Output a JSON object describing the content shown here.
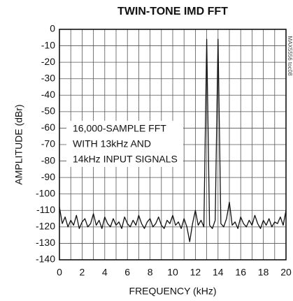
{
  "chart_data": {
    "type": "line",
    "title": "TWIN-TONE IMD FFT",
    "x_label": "FREQUENCY (kHz)",
    "y_label": "AMPLITUDE (dBr)",
    "annotation": [
      "16,000-SAMPLE FFT",
      "WITH 13kHz AND",
      "14kHz INPUT SIGNALS"
    ],
    "side_label": "MAX5556 toc08",
    "xlim": [
      0,
      20
    ],
    "ylim": [
      -140,
      0
    ],
    "xticks": [
      0,
      2,
      4,
      6,
      8,
      10,
      12,
      14,
      16,
      18,
      20
    ],
    "xgrid": [
      1,
      3,
      5,
      7,
      9,
      11,
      13,
      15,
      17,
      19
    ],
    "yticks": [
      0,
      -10,
      -20,
      -30,
      -40,
      -50,
      -60,
      -70,
      -80,
      -90,
      -100,
      -110,
      -120,
      -130,
      -140
    ],
    "grid": true,
    "series": [
      {
        "color": "#111111",
        "x": [
          0,
          0.25,
          0.5,
          0.75,
          1,
          1.25,
          1.5,
          1.75,
          2,
          2.25,
          2.5,
          2.75,
          3,
          3.25,
          3.5,
          3.75,
          4,
          4.25,
          4.5,
          4.75,
          5,
          5.25,
          5.5,
          5.75,
          6,
          6.25,
          6.5,
          6.75,
          7,
          7.25,
          7.5,
          7.75,
          8,
          8.25,
          8.5,
          8.75,
          9,
          9.25,
          9.5,
          9.75,
          10,
          10.25,
          10.5,
          10.75,
          11,
          11.25,
          11.5,
          11.75,
          12,
          12.25,
          12.5,
          12.75,
          13,
          13.25,
          13.5,
          13.75,
          14,
          14.25,
          14.5,
          14.75,
          15,
          15.25,
          15.5,
          15.75,
          16,
          16.25,
          16.5,
          16.75,
          17,
          17.25,
          17.5,
          17.75,
          18,
          18.25,
          18.5,
          18.75,
          19,
          19.25,
          19.5,
          19.75,
          20
        ],
        "values": [
          -108,
          -118,
          -114,
          -120,
          -116,
          -119,
          -113,
          -121,
          -117,
          -115,
          -120,
          -118,
          -112,
          -119,
          -116,
          -121,
          -114,
          -118,
          -120,
          -115,
          -119,
          -117,
          -121,
          -114,
          -118,
          -120,
          -116,
          -119,
          -113,
          -118,
          -121,
          -117,
          -115,
          -120,
          -118,
          -114,
          -119,
          -121,
          -116,
          -118,
          -113,
          -119,
          -117,
          -121,
          -115,
          -120,
          -129,
          -118,
          -110,
          -119,
          -116,
          -120,
          -6,
          -119,
          -121,
          -116,
          -6,
          -118,
          -120,
          -115,
          -105,
          -119,
          -117,
          -121,
          -114,
          -118,
          -120,
          -116,
          -119,
          -113,
          -118,
          -121,
          -116,
          -119,
          -115,
          -120,
          -117,
          -118,
          -114,
          -119,
          -110
        ]
      }
    ]
  }
}
